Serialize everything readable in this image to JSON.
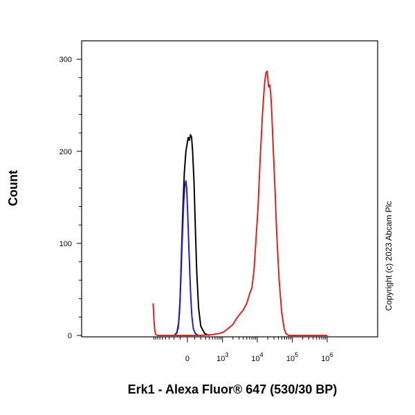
{
  "chart_data": {
    "type": "line",
    "xlabel": "Erk1 - Alexa Fluor® 647 (530/30 BP)",
    "ylabel": "Count",
    "x_scale": "biexponential",
    "ylim": [
      0,
      320
    ],
    "x_ticks": [
      {
        "value": 0,
        "base": "0",
        "exp": ""
      },
      {
        "value": 1000,
        "base": "10",
        "exp": "3"
      },
      {
        "value": 10000,
        "base": "10",
        "exp": "4"
      },
      {
        "value": 100000,
        "base": "10",
        "exp": "5"
      },
      {
        "value": 1000000,
        "base": "10",
        "exp": "6"
      }
    ],
    "y_ticks": [
      0,
      100,
      200,
      300
    ],
    "grid": false,
    "legend": "none",
    "annotation": "Copyright (c) 2023 Abcam Plc",
    "series": [
      {
        "color": "#000000",
        "points": [
          [
            -200,
            0
          ],
          [
            -150,
            3
          ],
          [
            -120,
            15
          ],
          [
            -100,
            40
          ],
          [
            -80,
            90
          ],
          [
            -60,
            140
          ],
          [
            -40,
            178
          ],
          [
            -20,
            200
          ],
          [
            0,
            210
          ],
          [
            10,
            215
          ],
          [
            25,
            212
          ],
          [
            40,
            218
          ],
          [
            55,
            215
          ],
          [
            70,
            200
          ],
          [
            90,
            165
          ],
          [
            110,
            115
          ],
          [
            130,
            70
          ],
          [
            160,
            30
          ],
          [
            200,
            10
          ],
          [
            280,
            2
          ],
          [
            400,
            0
          ]
        ]
      },
      {
        "color": "#1f1fd0",
        "points": [
          [
            -200,
            0
          ],
          [
            -160,
            2
          ],
          [
            -130,
            8
          ],
          [
            -110,
            25
          ],
          [
            -90,
            60
          ],
          [
            -70,
            105
          ],
          [
            -50,
            145
          ],
          [
            -35,
            162
          ],
          [
            -20,
            168
          ],
          [
            -10,
            160
          ],
          [
            0,
            140
          ],
          [
            15,
            105
          ],
          [
            30,
            70
          ],
          [
            45,
            40
          ],
          [
            60,
            20
          ],
          [
            80,
            7
          ],
          [
            110,
            2
          ],
          [
            160,
            0
          ]
        ]
      },
      {
        "color": "#dd2222",
        "points": [
          [
            -950,
            35
          ],
          [
            -900,
            18
          ],
          [
            -850,
            5
          ],
          [
            -800,
            1
          ],
          [
            -700,
            0
          ],
          [
            200,
            0
          ],
          [
            500,
            1
          ],
          [
            800,
            2
          ],
          [
            1100,
            4
          ],
          [
            1500,
            8
          ],
          [
            2000,
            12
          ],
          [
            2500,
            18
          ],
          [
            3000,
            22
          ],
          [
            4000,
            28
          ],
          [
            5000,
            35
          ],
          [
            6000,
            45
          ],
          [
            7000,
            52
          ],
          [
            8000,
            70
          ],
          [
            9000,
            100
          ],
          [
            10500,
            140
          ],
          [
            12000,
            190
          ],
          [
            14000,
            240
          ],
          [
            16000,
            272
          ],
          [
            17500,
            285
          ],
          [
            19000,
            287
          ],
          [
            20000,
            280
          ],
          [
            21000,
            270
          ],
          [
            22500,
            272
          ],
          [
            24000,
            265
          ],
          [
            26000,
            240
          ],
          [
            28000,
            210
          ],
          [
            32000,
            160
          ],
          [
            36000,
            110
          ],
          [
            42000,
            60
          ],
          [
            50000,
            25
          ],
          [
            58000,
            8
          ],
          [
            66000,
            2
          ],
          [
            80000,
            0
          ],
          [
            1000000,
            0
          ]
        ]
      }
    ]
  }
}
